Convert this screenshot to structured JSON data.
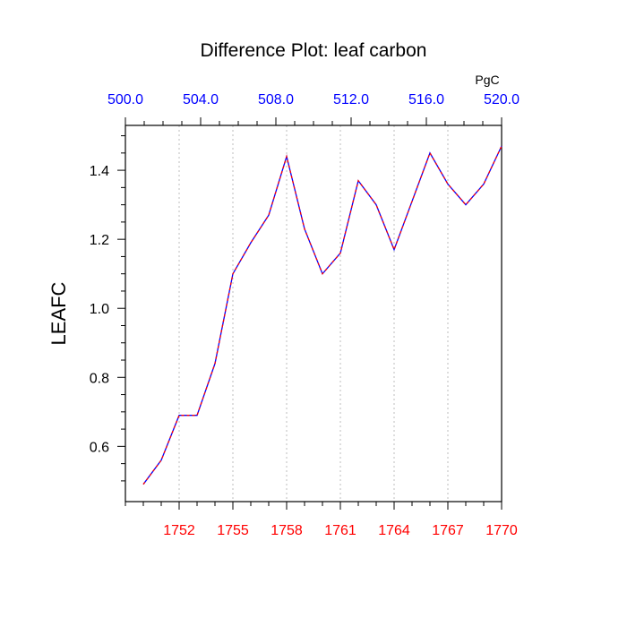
{
  "chart_data": {
    "type": "line",
    "title": "Difference Plot: leaf carbon",
    "ylabel": "LEAFC",
    "top_axis_units": "PgC",
    "xlim": [
      1749,
      1770
    ],
    "ylim": [
      0.44,
      1.53
    ],
    "x_ticks": [
      "1752",
      "1755",
      "1758",
      "1761",
      "1764",
      "1767",
      "1770"
    ],
    "y_ticks": [
      "0.6",
      "0.8",
      "1.0",
      "1.2",
      "1.4"
    ],
    "top_ticks": [
      "500.0",
      "504.0",
      "508.0",
      "512.0",
      "516.0",
      "520.0"
    ],
    "top_lim": [
      500,
      520
    ],
    "gridlines": "vertical dotted at x ticks",
    "series": [
      {
        "x": [
          1750,
          1751,
          1752,
          1753,
          1754,
          1755,
          1756,
          1757,
          1758,
          1759,
          1760,
          1761,
          1762,
          1763,
          1764,
          1765,
          1766,
          1767,
          1768,
          1769,
          1770
        ],
        "values": [
          0.49,
          0.56,
          0.69,
          0.69,
          0.84,
          1.1,
          1.19,
          1.27,
          1.44,
          1.23,
          1.1,
          1.16,
          1.37,
          1.3,
          1.17,
          1.31,
          1.45,
          1.36,
          1.3,
          1.36,
          1.47
        ],
        "color_a": "#ff0000",
        "color_b": "#0000ff"
      }
    ]
  },
  "colors": {
    "bottom_axis_labels": "#ff0000",
    "top_axis_labels": "#0000ff",
    "series_dash_a": "#ff0000",
    "series_dash_b": "#0000ff"
  }
}
